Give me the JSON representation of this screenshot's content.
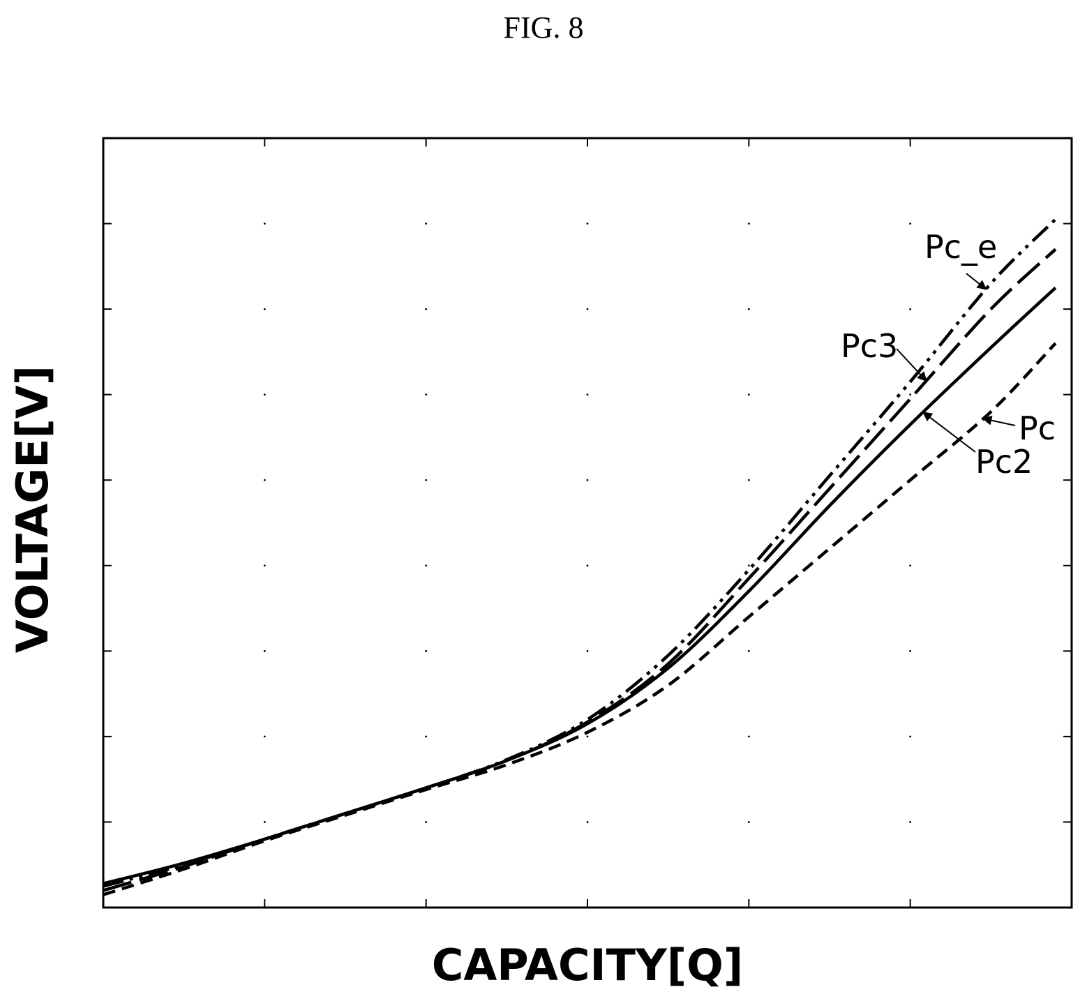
{
  "figure_title": "FIG. 8",
  "chart_data": {
    "type": "line",
    "title": "",
    "xlabel": "CAPACITY[Q]",
    "ylabel": "VOLTAGE[V]",
    "xlim": [
      0,
      6
    ],
    "ylim": [
      0,
      9
    ],
    "xticks": [
      1,
      2,
      3,
      4,
      5
    ],
    "yticks": [
      1,
      2,
      3,
      4,
      5,
      6,
      7,
      8
    ],
    "grid": "dotted-points",
    "series": [
      {
        "name": "Pc_e",
        "style": "dash-dot-dot",
        "x": [
          0,
          0.5,
          1,
          1.5,
          2,
          2.5,
          3,
          3.5,
          4,
          4.5,
          5,
          5.5,
          5.9
        ],
        "y": [
          0.25,
          0.5,
          0.8,
          1.1,
          1.4,
          1.73,
          2.2,
          2.95,
          3.95,
          5.05,
          6.15,
          7.3,
          8.05
        ]
      },
      {
        "name": "Pc3",
        "style": "long-dash",
        "x": [
          0,
          0.5,
          1,
          1.5,
          2,
          2.5,
          3,
          3.5,
          4,
          4.5,
          5,
          5.5,
          5.9
        ],
        "y": [
          0.2,
          0.48,
          0.8,
          1.1,
          1.4,
          1.72,
          2.17,
          2.85,
          3.85,
          4.9,
          5.95,
          7.0,
          7.7
        ]
      },
      {
        "name": "Pc2",
        "style": "solid",
        "x": [
          0,
          0.5,
          1,
          1.5,
          2,
          2.5,
          3,
          3.5,
          4,
          4.5,
          5,
          5.5,
          5.9
        ],
        "y": [
          0.28,
          0.52,
          0.8,
          1.1,
          1.4,
          1.72,
          2.15,
          2.8,
          3.7,
          4.7,
          5.65,
          6.55,
          7.25
        ]
      },
      {
        "name": "Pc",
        "style": "short-dash",
        "x": [
          0,
          0.5,
          1,
          1.5,
          2,
          2.5,
          3,
          3.5,
          4,
          4.5,
          5,
          5.5,
          5.9
        ],
        "y": [
          0.15,
          0.45,
          0.78,
          1.08,
          1.38,
          1.67,
          2.05,
          2.6,
          3.4,
          4.2,
          5.0,
          5.8,
          6.6
        ]
      }
    ],
    "annotations": [
      {
        "text": "Pc_e",
        "target_series": "Pc_e",
        "target_x": 5.47
      },
      {
        "text": "Pc3",
        "target_series": "Pc3",
        "target_x": 5.1
      },
      {
        "text": "Pc",
        "target_series": "Pc",
        "target_x": 5.45
      },
      {
        "text": "Pc2",
        "target_series": "Pc2",
        "target_x": 5.08
      }
    ]
  }
}
